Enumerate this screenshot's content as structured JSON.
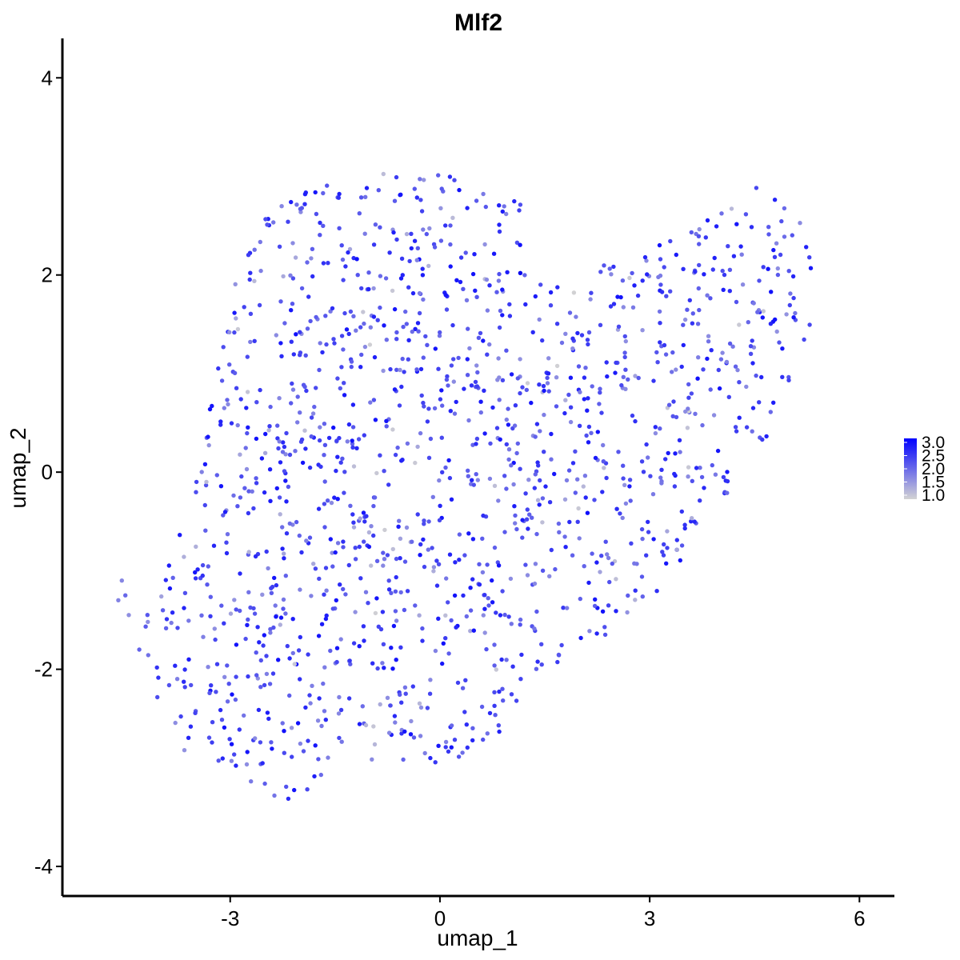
{
  "chart_data": {
    "type": "scatter",
    "title": "Mlf2",
    "xlabel": "umap_1",
    "ylabel": "umap_2",
    "xlim": [
      -5.4,
      6.5
    ],
    "ylim": [
      -4.3,
      4.4
    ],
    "x_ticks": [
      -3,
      0,
      3,
      6
    ],
    "x_tick_labels": [
      "-3",
      "0",
      "3",
      "6"
    ],
    "y_ticks": [
      -4,
      -2,
      0,
      2,
      4
    ],
    "y_tick_labels": [
      "-4",
      "-2",
      "0",
      "2",
      "4"
    ],
    "grid": false,
    "legend": {
      "type": "colorbar",
      "placement": "right",
      "min": 1.0,
      "max": 3.0,
      "ticks": [
        1.0,
        1.5,
        2.0,
        2.5,
        3.0
      ],
      "tick_labels": [
        "1.0",
        "1.5",
        "2.0",
        "2.5",
        "3.0"
      ],
      "low_color": "#d3d3d3",
      "high_color": "#0000ff"
    },
    "points_note_free": true,
    "region": {
      "polygon": [
        [
          -2.9,
          2.0
        ],
        [
          -2.4,
          2.7
        ],
        [
          -1.5,
          3.0
        ],
        [
          -0.6,
          3.05
        ],
        [
          0.3,
          3.0
        ],
        [
          1.2,
          2.85
        ],
        [
          1.2,
          2.1
        ],
        [
          2.0,
          2.0
        ],
        [
          3.0,
          2.3
        ],
        [
          3.8,
          2.55
        ],
        [
          4.4,
          2.9
        ],
        [
          4.8,
          2.85
        ],
        [
          5.3,
          2.4
        ],
        [
          5.35,
          1.6
        ],
        [
          5.1,
          0.9
        ],
        [
          4.6,
          0.2
        ],
        [
          4.0,
          -0.5
        ],
        [
          3.3,
          -1.1
        ],
        [
          2.5,
          -1.6
        ],
        [
          1.5,
          -2.0
        ],
        [
          1.0,
          -2.6
        ],
        [
          0.5,
          -2.9
        ],
        [
          0.0,
          -3.0
        ],
        [
          -0.7,
          -2.9
        ],
        [
          -1.5,
          -3.0
        ],
        [
          -2.2,
          -3.4
        ],
        [
          -2.8,
          -3.1
        ],
        [
          -3.6,
          -2.9
        ],
        [
          -4.2,
          -2.2
        ],
        [
          -4.3,
          -1.5
        ],
        [
          -4.0,
          -1.0
        ],
        [
          -3.6,
          -0.4
        ],
        [
          -3.4,
          0.3
        ],
        [
          -3.2,
          1.0
        ]
      ],
      "count": 1500,
      "outliers": [
        [
          -4.6,
          -1.3
        ],
        [
          -4.55,
          -1.1
        ],
        [
          -4.5,
          -1.25
        ],
        [
          -4.45,
          -1.45
        ],
        [
          -4.3,
          -1.8
        ],
        [
          1.15,
          2.02
        ]
      ]
    }
  }
}
